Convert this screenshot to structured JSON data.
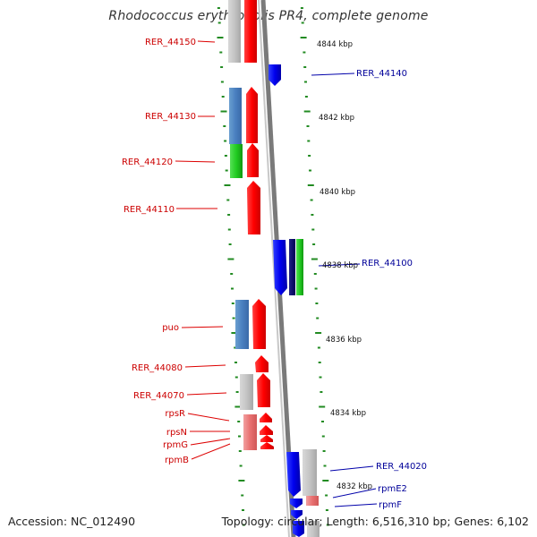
{
  "title": "Rhodococcus erythropolis PR4, complete genome",
  "footer": {
    "accession": "Accession: NC_012490",
    "topology": "Topology: circular; Length: 6,516,310 bp; Genes: 6,102"
  },
  "colors": {
    "forward_label": "#cc0000",
    "reverse_label": "#000099",
    "tick": "#228b22",
    "backbone": "#888888"
  },
  "scale": [
    {
      "label": "4844 kbp"
    },
    {
      "label": "4842 kbp"
    },
    {
      "label": "4840 kbp"
    },
    {
      "label": "4838 kbp"
    },
    {
      "label": "4836 kbp"
    },
    {
      "label": "4834 kbp"
    },
    {
      "label": "4832 kbp"
    }
  ],
  "forward_genes": [
    {
      "label": "RER_44150"
    },
    {
      "label": "RER_44130"
    },
    {
      "label": "RER_44120"
    },
    {
      "label": "RER_44110"
    },
    {
      "label": "puo"
    },
    {
      "label": "RER_44080"
    },
    {
      "label": "RER_44070"
    },
    {
      "label": "rpsR"
    },
    {
      "label": "rpsN"
    },
    {
      "label": "rpmG"
    },
    {
      "label": "rpmB"
    }
  ],
  "reverse_genes": [
    {
      "label": "RER_44140"
    },
    {
      "label": "RER_44100"
    },
    {
      "label": "RER_44020"
    },
    {
      "label": "rpmE2"
    },
    {
      "label": "rpmF"
    }
  ]
}
